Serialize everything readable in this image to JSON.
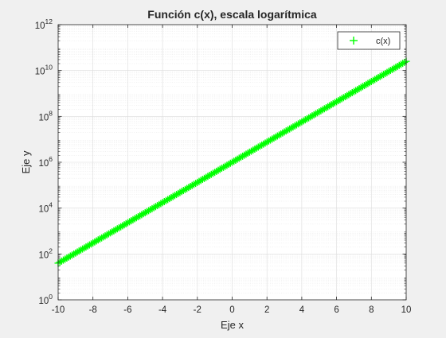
{
  "chart_data": {
    "type": "scatter",
    "title": "Función c(x), escala logarítmica",
    "xlabel": "Eje x",
    "ylabel": "Eje y",
    "xlim": [
      -10,
      10
    ],
    "ylim": [
      1,
      1000000000000
    ],
    "yscale": "log",
    "xticks": [
      -10,
      -8,
      -6,
      -4,
      -2,
      0,
      2,
      4,
      6,
      8,
      10
    ],
    "xtick_labels": [
      "-10",
      "-8",
      "-6",
      "-4",
      "-2",
      "0",
      "2",
      "4",
      "6",
      "8",
      "10"
    ],
    "yticks": [
      {
        "value": 1,
        "base": "10",
        "exp": "0"
      },
      {
        "value": 100,
        "base": "10",
        "exp": "2"
      },
      {
        "value": 10000,
        "base": "10",
        "exp": "4"
      },
      {
        "value": 1000000,
        "base": "10",
        "exp": "6"
      },
      {
        "value": 100000000,
        "base": "10",
        "exp": "8"
      },
      {
        "value": 10000000000,
        "base": "10",
        "exp": "10"
      },
      {
        "value": 1000000000000,
        "base": "10",
        "exp": "12"
      }
    ],
    "grid": true,
    "minor_grid": true,
    "legend_position": "top-right",
    "series": [
      {
        "name": "c(x)",
        "marker": "+",
        "color": "#00ff00",
        "formula": "c(x) = 10^(6 + 0.44x)",
        "x_start": -10,
        "x_end": 10,
        "x_step": 0.1,
        "y_at_x_start": 39.8,
        "y_at_x_end": 25118864315
      }
    ]
  }
}
